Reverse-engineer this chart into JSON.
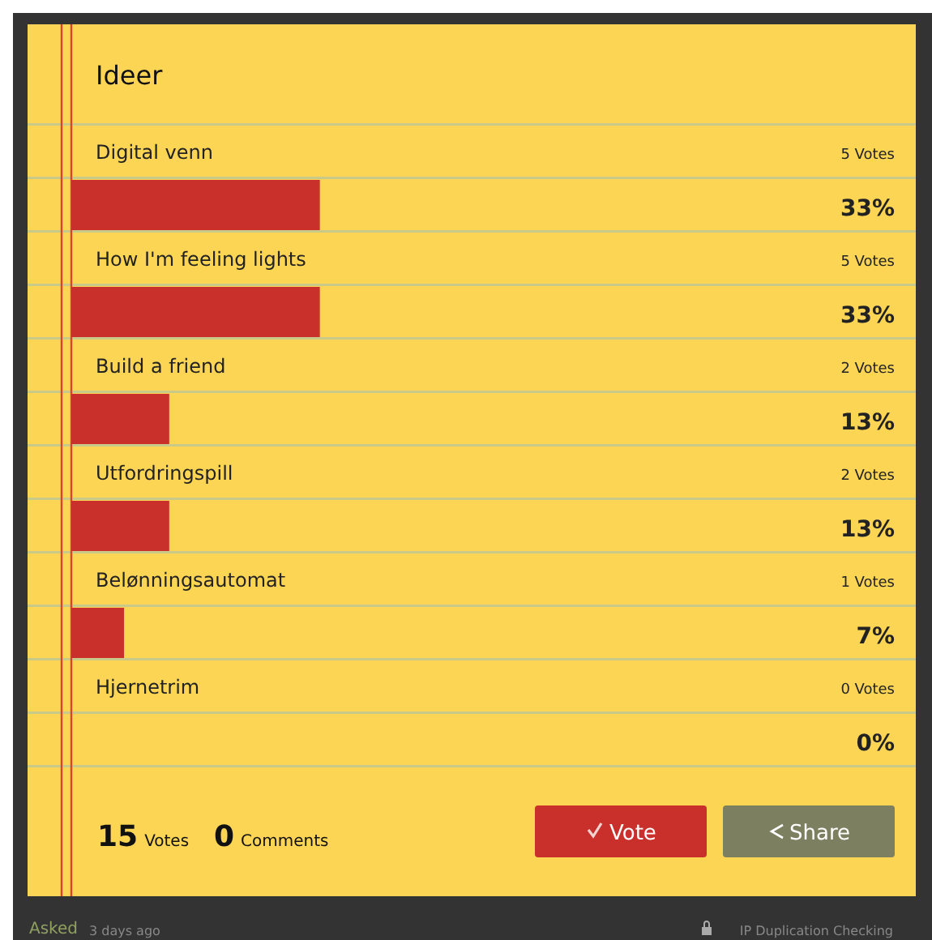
{
  "chart_data": {
    "type": "bar",
    "orientation": "horizontal",
    "title": "Ideer",
    "categories": [
      "Digital venn",
      "How I'm feeling lights",
      "Build a friend",
      "Utfordringspill",
      "Belønningsautomat",
      "Hjernetrim"
    ],
    "values": [
      33,
      33,
      13,
      13,
      7,
      0
    ],
    "value_labels": [
      "33%",
      "33%",
      "13%",
      "13%",
      "7%",
      "0%"
    ],
    "color": "#c9302c",
    "annotations": [
      "5 Votes",
      "5 Votes",
      "2 Votes",
      "2 Votes",
      "1 Votes",
      "0 Votes",
      "15 Votes",
      "0 Comments",
      "Vote",
      "Share",
      "Asked",
      "3 days ago",
      "IP Duplication Checking"
    ]
  }
}
